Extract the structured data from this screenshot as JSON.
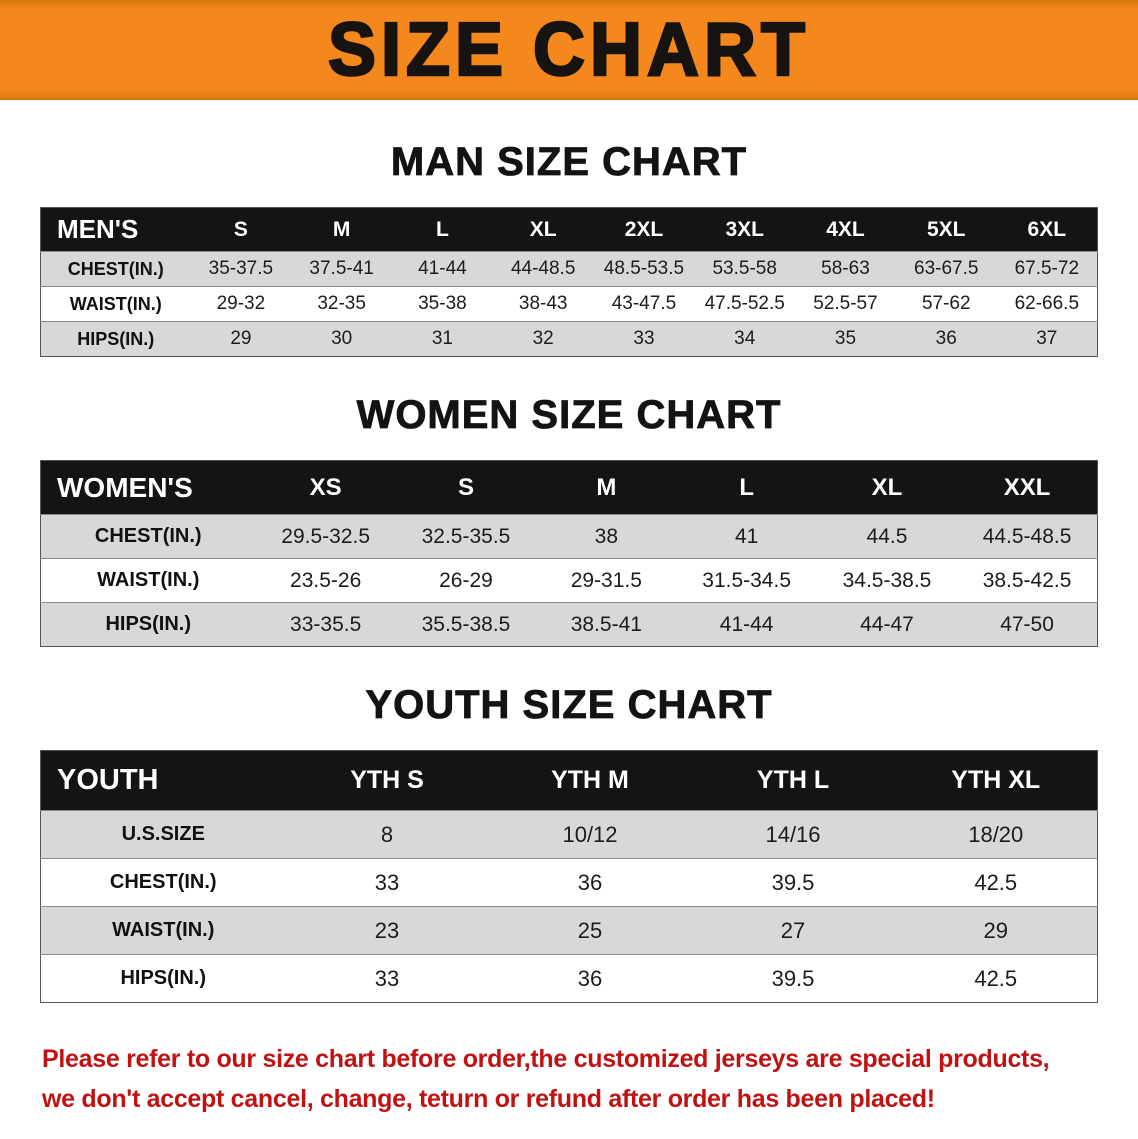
{
  "banner": {
    "title": "SIZE CHART",
    "bg_color": "#f5881c",
    "text_color": "#161310"
  },
  "sections": [
    {
      "heading": "MAN SIZE CHART",
      "table": {
        "header": [
          "MEN'S",
          "S",
          "M",
          "L",
          "XL",
          "2XL",
          "3XL",
          "4XL",
          "5XL",
          "6XL"
        ],
        "rows": [
          [
            "CHEST(IN.)",
            "35-37.5",
            "37.5-41",
            "41-44",
            "44-48.5",
            "48.5-53.5",
            "53.5-58",
            "58-63",
            "63-67.5",
            "67.5-72"
          ],
          [
            "WAIST(IN.)",
            "29-32",
            "32-35",
            "35-38",
            "38-43",
            "43-47.5",
            "47.5-52.5",
            "52.5-57",
            "57-62",
            "62-66.5"
          ],
          [
            "HIPS(IN.)",
            "29",
            "30",
            "31",
            "32",
            "33",
            "34",
            "35",
            "36",
            "37"
          ]
        ]
      }
    },
    {
      "heading": "WOMEN SIZE CHART",
      "table": {
        "header": [
          "WOMEN'S",
          "XS",
          "S",
          "M",
          "L",
          "XL",
          "XXL"
        ],
        "rows": [
          [
            "CHEST(IN.)",
            "29.5-32.5",
            "32.5-35.5",
            "38",
            "41",
            "44.5",
            "44.5-48.5"
          ],
          [
            "WAIST(IN.)",
            "23.5-26",
            "26-29",
            "29-31.5",
            "31.5-34.5",
            "34.5-38.5",
            "38.5-42.5"
          ],
          [
            "HIPS(IN.)",
            "33-35.5",
            "35.5-38.5",
            "38.5-41",
            "41-44",
            "44-47",
            "47-50"
          ]
        ]
      }
    },
    {
      "heading": "YOUTH SIZE CHART",
      "table": {
        "header": [
          "YOUTH",
          "YTH S",
          "YTH M",
          "YTH L",
          "YTH XL"
        ],
        "rows": [
          [
            "U.S.SIZE",
            "8",
            "10/12",
            "14/16",
            "18/20"
          ],
          [
            "CHEST(IN.)",
            "33",
            "36",
            "39.5",
            "42.5"
          ],
          [
            "WAIST(IN.)",
            "23",
            "25",
            "27",
            "29"
          ],
          [
            "HIPS(IN.)",
            "33",
            "36",
            "39.5",
            "42.5"
          ]
        ]
      }
    }
  ],
  "footer": {
    "line1": "Please refer to our size chart before order,the customized jerseys are special products,",
    "line2": "we don't accept cancel, change, teturn or refund after order has been placed!",
    "text_color": "#c01212"
  },
  "colors": {
    "table_header_bg": "#141414",
    "row_stripe": "#d8d8d8"
  }
}
